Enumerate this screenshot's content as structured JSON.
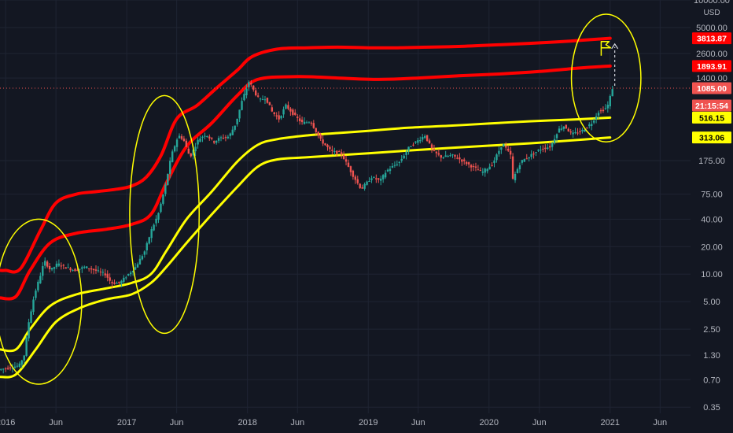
{
  "chart_data": {
    "type": "line",
    "title": "",
    "xlabel": "",
    "ylabel": "USD",
    "y_scale": "log",
    "ylim": [
      0.3,
      10000
    ],
    "xlim": [
      "2015-12-15",
      "2021-09-01"
    ],
    "grid": true,
    "y_ticks": [
      "10000.00",
      "5000.00",
      "2600.00",
      "1400.00",
      "175.00",
      "75.00",
      "40.00",
      "20.00",
      "10.00",
      "5.00",
      "2.50",
      "1.30",
      "0.70",
      "0.35"
    ],
    "x_ticks": [
      {
        "label": "2016",
        "date": "2016-01-01"
      },
      {
        "label": "Jun",
        "date": "2016-06-01"
      },
      {
        "label": "2017",
        "date": "2017-01-01"
      },
      {
        "label": "Jun",
        "date": "2017-06-01"
      },
      {
        "label": "2018",
        "date": "2018-01-01"
      },
      {
        "label": "Jun",
        "date": "2018-06-01"
      },
      {
        "label": "2019",
        "date": "2019-01-01"
      },
      {
        "label": "Jun",
        "date": "2019-06-01"
      },
      {
        "label": "2020",
        "date": "2020-01-01"
      },
      {
        "label": "Jun",
        "date": "2020-06-01"
      },
      {
        "label": "2021",
        "date": "2021-01-01"
      },
      {
        "label": "Jun",
        "date": "2021-06-01"
      }
    ],
    "price_labels": [
      {
        "text": "3813.87",
        "value": 3813.87,
        "bg": "#ff0000",
        "fg": "#ffffff"
      },
      {
        "text": "1893.91",
        "value": 1893.91,
        "bg": "#ff0000",
        "fg": "#ffffff"
      },
      {
        "text": "1085.00",
        "value": 1085.0,
        "bg": "#ef5350",
        "fg": "#ffffff"
      },
      {
        "text": "21:15:54",
        "value": 700,
        "bg": "#ef5350",
        "fg": "#ffffff"
      },
      {
        "text": "516.15",
        "value": 516.15,
        "bg": "#ffff00",
        "fg": "#000000"
      },
      {
        "text": "313.06",
        "value": 313.06,
        "bg": "#ffff00",
        "fg": "#000000"
      }
    ],
    "current_price": 1085.0,
    "series": [
      {
        "color": "#ff0000",
        "points": [
          [
            "2015-12-15",
            11
          ],
          [
            "2016-01-01",
            11
          ],
          [
            "2016-02-15",
            11.5
          ],
          [
            "2016-04-15",
            30
          ],
          [
            "2016-06-01",
            60
          ],
          [
            "2016-08-01",
            75
          ],
          [
            "2016-10-01",
            80
          ],
          [
            "2016-12-01",
            85
          ],
          [
            "2017-01-15",
            92
          ],
          [
            "2017-03-01",
            115
          ],
          [
            "2017-04-15",
            200
          ],
          [
            "2017-06-01",
            500
          ],
          [
            "2017-08-01",
            700
          ],
          [
            "2017-10-01",
            1100
          ],
          [
            "2017-12-01",
            1700
          ],
          [
            "2018-01-15",
            2400
          ],
          [
            "2018-04-01",
            2900
          ],
          [
            "2018-07-01",
            3000
          ],
          [
            "2018-10-01",
            3050
          ],
          [
            "2019-01-01",
            3000
          ],
          [
            "2019-04-01",
            3000
          ],
          [
            "2019-07-01",
            3050
          ],
          [
            "2019-10-01",
            3100
          ],
          [
            "2020-01-01",
            3200
          ],
          [
            "2020-05-01",
            3350
          ],
          [
            "2020-09-01",
            3550
          ],
          [
            "2021-01-01",
            3813.87
          ]
        ]
      },
      {
        "color": "#ff0000",
        "points": [
          [
            "2015-12-15",
            5.5
          ],
          [
            "2016-02-01",
            5.7
          ],
          [
            "2016-03-15",
            11
          ],
          [
            "2016-05-15",
            22
          ],
          [
            "2016-08-01",
            28
          ],
          [
            "2016-11-01",
            31
          ],
          [
            "2017-01-15",
            35
          ],
          [
            "2017-03-15",
            45
          ],
          [
            "2017-05-01",
            100
          ],
          [
            "2017-07-01",
            250
          ],
          [
            "2017-09-15",
            450
          ],
          [
            "2017-12-01",
            900
          ],
          [
            "2018-02-01",
            1350
          ],
          [
            "2018-06-01",
            1450
          ],
          [
            "2018-10-01",
            1400
          ],
          [
            "2019-02-01",
            1350
          ],
          [
            "2019-06-01",
            1400
          ],
          [
            "2019-10-01",
            1480
          ],
          [
            "2020-02-01",
            1550
          ],
          [
            "2020-06-01",
            1650
          ],
          [
            "2020-10-01",
            1800
          ],
          [
            "2021-01-01",
            1893.91
          ]
        ]
      },
      {
        "color": "#ffff00",
        "points": [
          [
            "2015-12-15",
            1.5
          ],
          [
            "2016-02-01",
            1.5
          ],
          [
            "2016-03-15",
            2.5
          ],
          [
            "2016-05-15",
            4.5
          ],
          [
            "2016-08-01",
            6
          ],
          [
            "2016-11-01",
            7
          ],
          [
            "2017-01-15",
            8
          ],
          [
            "2017-03-15",
            10
          ],
          [
            "2017-05-01",
            18
          ],
          [
            "2017-07-01",
            40
          ],
          [
            "2017-09-15",
            80
          ],
          [
            "2017-12-01",
            170
          ],
          [
            "2018-02-01",
            260
          ],
          [
            "2018-04-01",
            300
          ],
          [
            "2018-07-01",
            330
          ],
          [
            "2018-10-01",
            350
          ],
          [
            "2019-01-01",
            370
          ],
          [
            "2019-05-01",
            400
          ],
          [
            "2019-09-01",
            420
          ],
          [
            "2020-01-01",
            445
          ],
          [
            "2020-05-01",
            470
          ],
          [
            "2020-09-01",
            490
          ],
          [
            "2021-01-01",
            516.15
          ]
        ]
      },
      {
        "color": "#ffff00",
        "points": [
          [
            "2015-12-15",
            0.75
          ],
          [
            "2016-02-01",
            0.8
          ],
          [
            "2016-04-01",
            1.5
          ],
          [
            "2016-06-01",
            3
          ],
          [
            "2016-08-15",
            4.3
          ],
          [
            "2016-11-01",
            5.3
          ],
          [
            "2017-01-15",
            6
          ],
          [
            "2017-03-15",
            8
          ],
          [
            "2017-05-01",
            12
          ],
          [
            "2017-07-01",
            22
          ],
          [
            "2017-09-15",
            45
          ],
          [
            "2017-12-01",
            90
          ],
          [
            "2018-02-01",
            150
          ],
          [
            "2018-04-01",
            180
          ],
          [
            "2018-07-01",
            190
          ],
          [
            "2018-10-01",
            200
          ],
          [
            "2019-01-01",
            210
          ],
          [
            "2019-05-01",
            225
          ],
          [
            "2019-09-01",
            240
          ],
          [
            "2020-01-01",
            255
          ],
          [
            "2020-05-01",
            270
          ],
          [
            "2020-09-01",
            290
          ],
          [
            "2021-01-01",
            313.06
          ]
        ]
      }
    ],
    "price_path": [
      [
        "2015-12-15",
        0.9
      ],
      [
        "2016-01-15",
        0.95
      ],
      [
        "2016-02-15",
        1.0
      ],
      [
        "2016-03-01",
        1.3
      ],
      [
        "2016-03-15",
        3
      ],
      [
        "2016-04-01",
        6
      ],
      [
        "2016-04-20",
        10
      ],
      [
        "2016-05-01",
        14
      ],
      [
        "2016-05-20",
        11
      ],
      [
        "2016-06-10",
        13
      ],
      [
        "2016-07-01",
        12
      ],
      [
        "2016-08-01",
        11
      ],
      [
        "2016-09-01",
        12
      ],
      [
        "2016-10-01",
        11
      ],
      [
        "2016-11-01",
        10
      ],
      [
        "2016-11-20",
        8
      ],
      [
        "2016-12-15",
        8
      ],
      [
        "2017-01-10",
        10
      ],
      [
        "2017-02-01",
        12
      ],
      [
        "2017-03-01",
        18
      ],
      [
        "2017-03-20",
        30
      ],
      [
        "2017-04-10",
        45
      ],
      [
        "2017-05-01",
        90
      ],
      [
        "2017-05-20",
        200
      ],
      [
        "2017-06-10",
        330
      ],
      [
        "2017-06-25",
        300
      ],
      [
        "2017-07-15",
        190
      ],
      [
        "2017-08-10",
        300
      ],
      [
        "2017-09-01",
        340
      ],
      [
        "2017-09-25",
        280
      ],
      [
        "2017-10-15",
        310
      ],
      [
        "2017-11-10",
        320
      ],
      [
        "2017-12-01",
        450
      ],
      [
        "2017-12-20",
        800
      ],
      [
        "2018-01-10",
        1300
      ],
      [
        "2018-01-25",
        1000
      ],
      [
        "2018-02-10",
        800
      ],
      [
        "2018-03-01",
        850
      ],
      [
        "2018-03-20",
        600
      ],
      [
        "2018-04-10",
        500
      ],
      [
        "2018-05-01",
        700
      ],
      [
        "2018-06-01",
        520
      ],
      [
        "2018-06-20",
        450
      ],
      [
        "2018-07-15",
        470
      ],
      [
        "2018-08-15",
        290
      ],
      [
        "2018-09-15",
        220
      ],
      [
        "2018-10-15",
        210
      ],
      [
        "2018-11-20",
        120
      ],
      [
        "2018-12-15",
        85
      ],
      [
        "2019-01-15",
        115
      ],
      [
        "2019-02-10",
        105
      ],
      [
        "2019-03-01",
        135
      ],
      [
        "2019-04-10",
        170
      ],
      [
        "2019-05-10",
        250
      ],
      [
        "2019-06-10",
        300
      ],
      [
        "2019-06-25",
        330
      ],
      [
        "2019-07-20",
        220
      ],
      [
        "2019-08-15",
        190
      ],
      [
        "2019-09-15",
        200
      ],
      [
        "2019-10-15",
        175
      ],
      [
        "2019-11-15",
        150
      ],
      [
        "2019-12-15",
        130
      ],
      [
        "2020-01-15",
        160
      ],
      [
        "2020-02-15",
        270
      ],
      [
        "2020-03-10",
        200
      ],
      [
        "2020-03-15",
        105
      ],
      [
        "2020-04-10",
        170
      ],
      [
        "2020-05-10",
        200
      ],
      [
        "2020-06-10",
        235
      ],
      [
        "2020-07-10",
        250
      ],
      [
        "2020-08-01",
        380
      ],
      [
        "2020-08-20",
        420
      ],
      [
        "2020-09-10",
        340
      ],
      [
        "2020-10-10",
        365
      ],
      [
        "2020-11-10",
        450
      ],
      [
        "2020-12-01",
        600
      ],
      [
        "2020-12-20",
        640
      ],
      [
        "2021-01-01",
        730
      ],
      [
        "2021-01-10",
        1085
      ]
    ],
    "annotations": [
      {
        "type": "ellipse",
        "center": [
          "2016-04-10",
          5
        ],
        "rx_days": 130,
        "ry_factor": 8,
        "color": "#ffff00"
      },
      {
        "type": "ellipse",
        "center": [
          "2017-04-25",
          45
        ],
        "rx_days": 105,
        "ry_factor": 20,
        "color": "#ffff00"
      },
      {
        "type": "ellipse",
        "center": [
          "2020-12-20",
          1400
        ],
        "rx_days": 105,
        "ry_factor": 5,
        "color": "#ffff00"
      },
      {
        "type": "flag",
        "at": [
          "2020-12-05",
          3000
        ],
        "color": "#ffff00"
      },
      {
        "type": "arrow",
        "from": [
          "2021-01-15",
          1150
        ],
        "to": [
          "2021-01-15",
          3300
        ],
        "color": "#d1d4dc"
      }
    ]
  }
}
